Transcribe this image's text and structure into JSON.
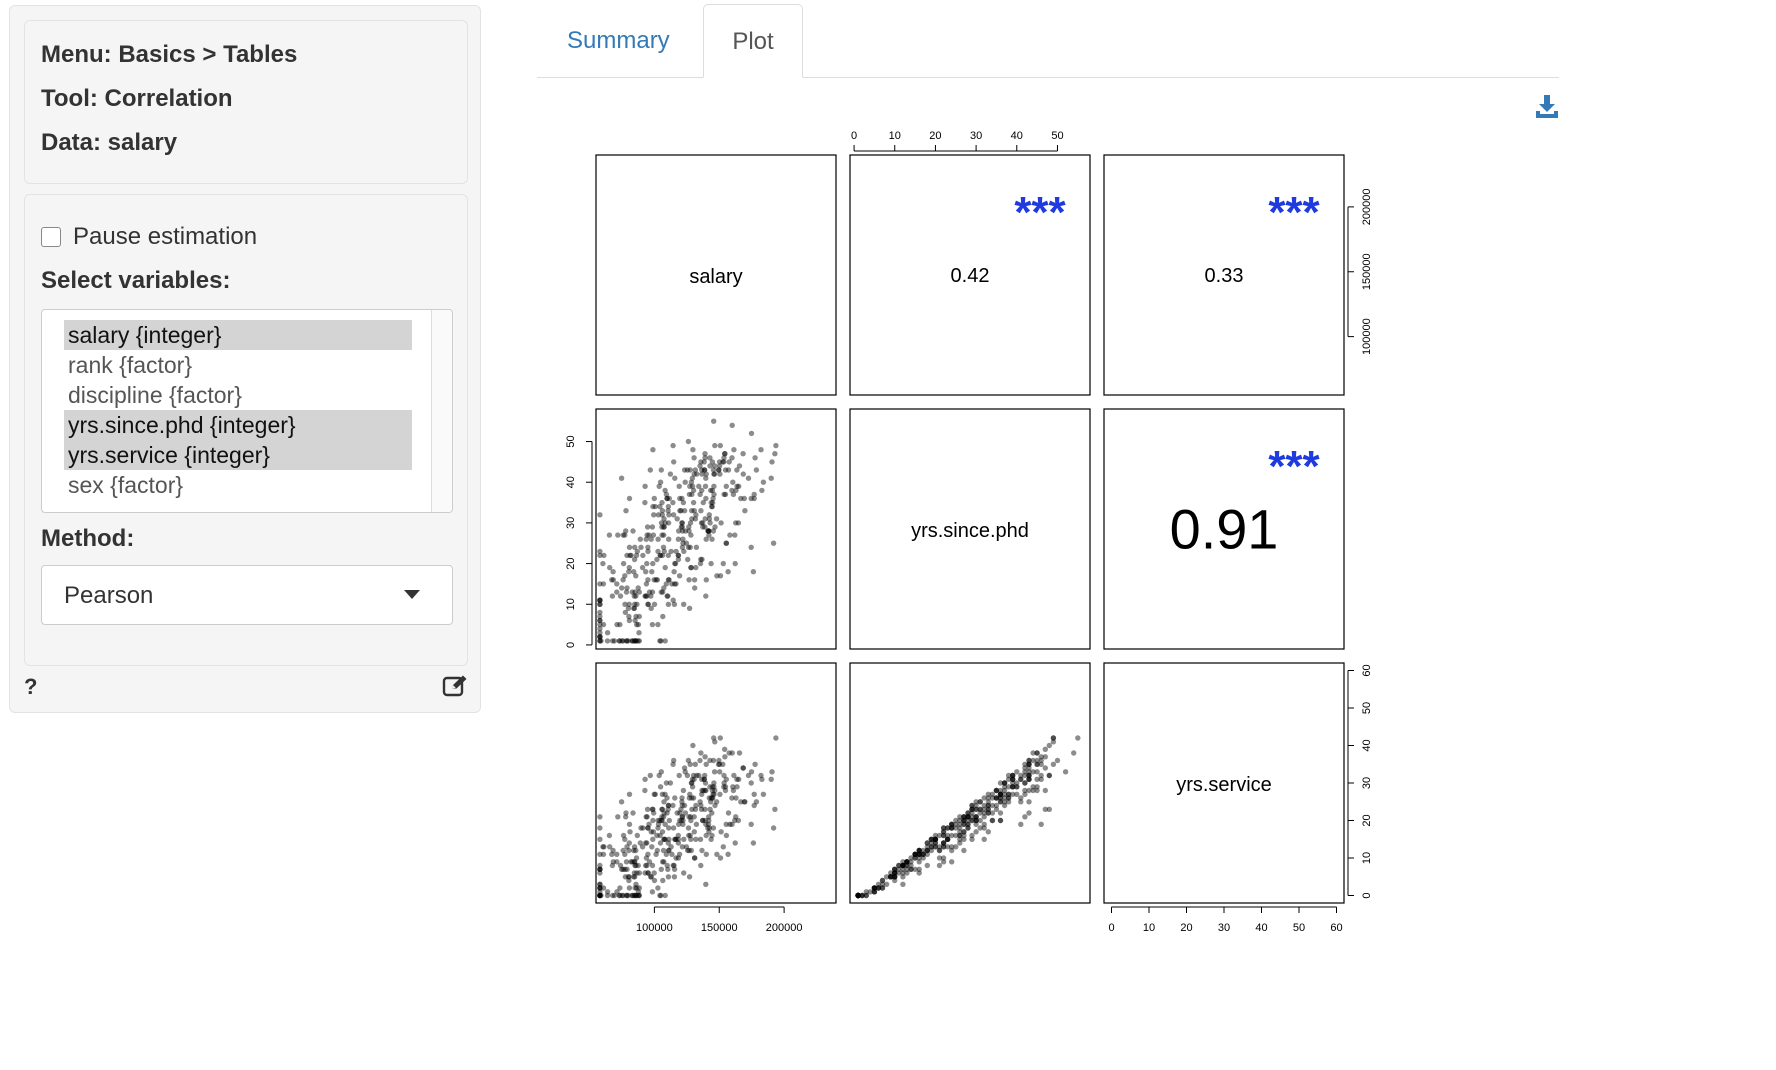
{
  "sidebar": {
    "info": {
      "menu": "Menu: Basics > Tables",
      "tool": "Tool: Correlation",
      "data": "Data: salary"
    },
    "pause": {
      "label": "Pause estimation",
      "checked": false
    },
    "variables": {
      "label": "Select variables:",
      "items": [
        {
          "label": "salary {integer}",
          "selected": true
        },
        {
          "label": "rank {factor}",
          "selected": false
        },
        {
          "label": "discipline {factor}",
          "selected": false
        },
        {
          "label": "yrs.since.phd {integer}",
          "selected": true
        },
        {
          "label": "yrs.service {integer}",
          "selected": true
        },
        {
          "label": "sex {factor}",
          "selected": false
        }
      ]
    },
    "method": {
      "label": "Method:",
      "value": "Pearson"
    },
    "help": "?"
  },
  "tabs": [
    {
      "label": "Summary",
      "active": false
    },
    {
      "label": "Plot",
      "active": true
    }
  ],
  "icons": {
    "download": "download-icon",
    "edit": "edit-icon"
  },
  "colors": {
    "stars": "#1f3be0",
    "link": "#337ab7"
  },
  "chart_data": {
    "type": "scatter",
    "variables": [
      "salary",
      "yrs.since.phd",
      "yrs.service"
    ],
    "correlations": [
      {
        "row": 0,
        "col": 1,
        "label": "0.42",
        "value": 0.42,
        "stars": "***"
      },
      {
        "row": 0,
        "col": 2,
        "label": "0.33",
        "value": 0.33,
        "stars": "***"
      },
      {
        "row": 1,
        "col": 2,
        "label": "0.91",
        "value": 0.91,
        "stars": "***"
      }
    ],
    "axes": {
      "salary": {
        "ticks": [
          100000,
          150000,
          200000
        ],
        "range": [
          55000,
          240000
        ]
      },
      "yrs.since.phd": {
        "ticks": [
          0,
          10,
          20,
          30,
          40,
          50
        ],
        "range": [
          -1,
          58
        ]
      },
      "yrs.service": {
        "ticks": [
          0,
          10,
          20,
          30,
          40,
          50,
          60
        ],
        "range": [
          -2,
          62
        ]
      }
    },
    "point_count": 397
  }
}
